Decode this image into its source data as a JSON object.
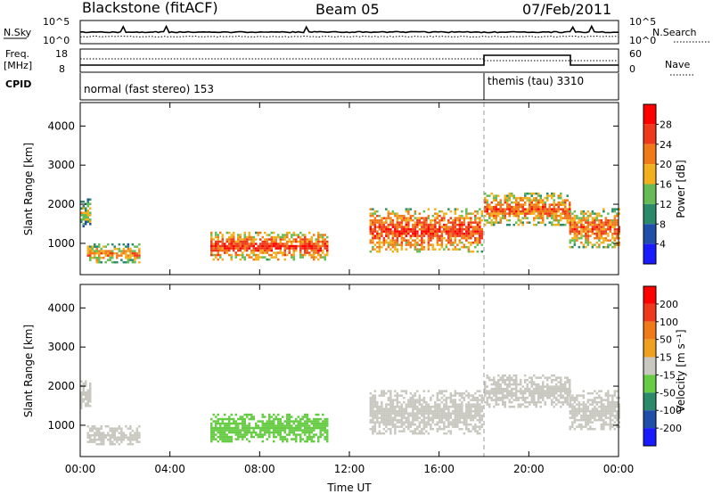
{
  "header": {
    "station": "Blackstone (fitACF)",
    "beam": "Beam 05",
    "date": "07/Feb/2011"
  },
  "summary": {
    "nsky_label": "N.Sky",
    "nsky_ticks": [
      "10^5",
      "10^0"
    ],
    "nsearch_label": "N.Search",
    "nsearch_ticks": [
      "10^5",
      "10^0"
    ],
    "freq_label": "Freq.",
    "freq_unit": "[MHz]",
    "freq_ticks": [
      "18",
      "8"
    ],
    "nave_label": "Nave",
    "nave_ticks": [
      "60",
      "0"
    ],
    "cpid_label": "CPID",
    "modes": [
      {
        "name": "normal (fast stereo) 153",
        "start": "00:00",
        "end": "18:00"
      },
      {
        "name": "themis (tau) 3310",
        "start": "18:00",
        "end": "24:00"
      }
    ]
  },
  "colors": {
    "power_scale": [
      "#1a1aff",
      "#1f4fa8",
      "#2a8a6a",
      "#66bb55",
      "#f2b01e",
      "#f07a1a",
      "#ee3a1a",
      "#ff0000"
    ],
    "velocity_scale": [
      "#1a1aff",
      "#1f4fa8",
      "#2a8a6a",
      "#66cc44",
      "#c8c8c0",
      "#f0a020",
      "#f07a1a",
      "#ee3a1a",
      "#ff0000"
    ]
  },
  "chart_data": [
    {
      "type": "heatmap",
      "name": "power-panel",
      "ylabel": "Slant Range [km]",
      "xlabel": "",
      "x_ticks": [
        "00:00",
        "04:00",
        "08:00",
        "12:00",
        "16:00",
        "20:00",
        "00:00"
      ],
      "y_ticks": [
        "1000",
        "2000",
        "3000",
        "4000"
      ],
      "ylim": [
        200,
        4600
      ],
      "xlim_hours": [
        0,
        24
      ],
      "colorbar": {
        "label": "Power [dB]",
        "ticks": [
          "4",
          "8",
          "12",
          "16",
          "20",
          "24",
          "28"
        ],
        "range": [
          0,
          30
        ]
      },
      "regions": [
        {
          "t0": 0.0,
          "t1": 0.4,
          "r0": 1450,
          "r1": 2150,
          "value": 12
        },
        {
          "t0": 0.3,
          "t1": 2.6,
          "r0": 500,
          "r1": 1000,
          "value": 16
        },
        {
          "t0": 5.8,
          "t1": 11.0,
          "r0": 600,
          "r1": 1300,
          "value": 20
        },
        {
          "t0": 12.9,
          "t1": 17.9,
          "r0": 800,
          "r1": 1900,
          "value": 20
        },
        {
          "t0": 18.0,
          "t1": 21.8,
          "r0": 1500,
          "r1": 2300,
          "value": 18
        },
        {
          "t0": 21.8,
          "t1": 24.0,
          "r0": 900,
          "r1": 1900,
          "value": 18
        }
      ]
    },
    {
      "type": "heatmap",
      "name": "velocity-panel",
      "ylabel": "Slant Range [km]",
      "xlabel": "Time UT",
      "x_ticks": [
        "00:00",
        "04:00",
        "08:00",
        "12:00",
        "16:00",
        "20:00",
        "00:00"
      ],
      "y_ticks": [
        "1000",
        "2000",
        "3000",
        "4000"
      ],
      "ylim": [
        200,
        4600
      ],
      "xlim_hours": [
        0,
        24
      ],
      "colorbar": {
        "label": "Velocity [m s⁻¹]",
        "ticks": [
          "200",
          "100",
          "50",
          "15",
          "-15",
          "-50",
          "-100",
          "-200"
        ],
        "range": [
          -250,
          250
        ]
      },
      "regions": [
        {
          "t0": 0.0,
          "t1": 0.4,
          "r0": 1450,
          "r1": 2150,
          "value": 0
        },
        {
          "t0": 0.3,
          "t1": 2.6,
          "r0": 500,
          "r1": 1000,
          "value": 10
        },
        {
          "t0": 5.8,
          "t1": 11.0,
          "r0": 600,
          "r1": 1300,
          "value": -60
        },
        {
          "t0": 12.9,
          "t1": 17.9,
          "r0": 800,
          "r1": 1900,
          "value": 0
        },
        {
          "t0": 18.0,
          "t1": 21.8,
          "r0": 1500,
          "r1": 2300,
          "value": 0
        },
        {
          "t0": 21.8,
          "t1": 24.0,
          "r0": 900,
          "r1": 1900,
          "value": 0
        }
      ]
    }
  ]
}
